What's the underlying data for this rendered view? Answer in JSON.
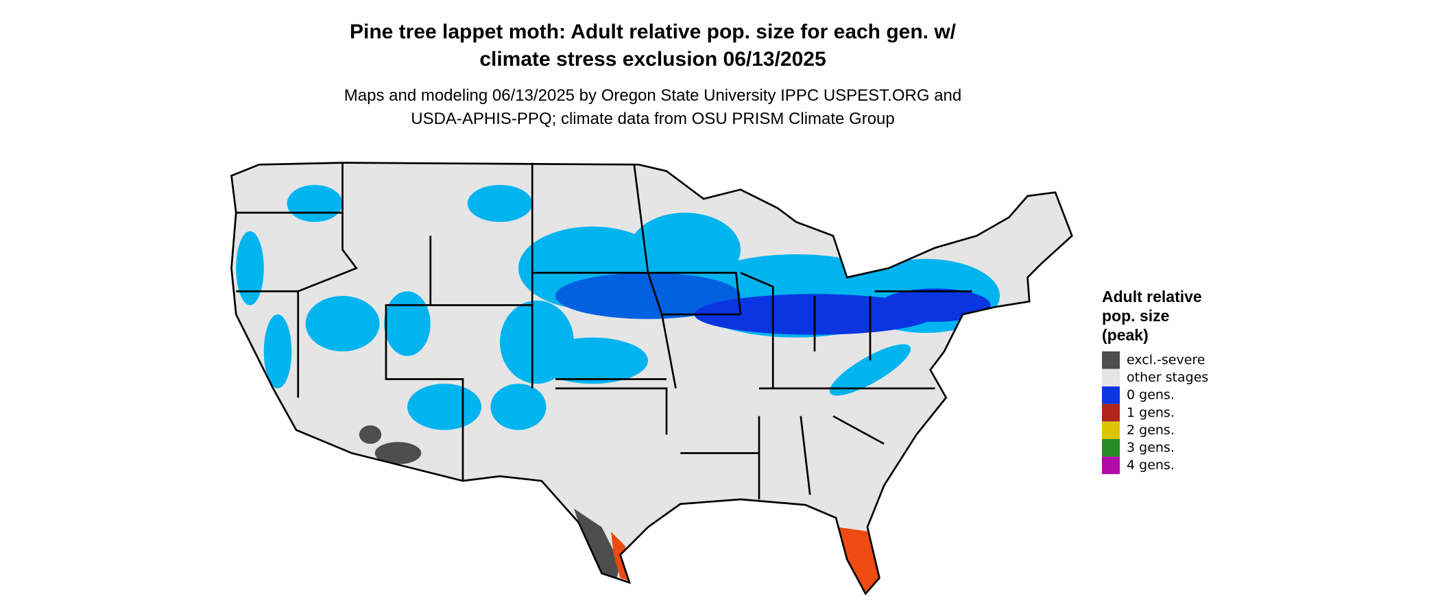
{
  "title": [
    "Pine tree lappet moth: Adult relative pop. size for each gen. w/",
    "climate stress exclusion 06/13/2025"
  ],
  "subtitle": [
    "Maps and modeling 06/13/2025 by Oregon State University IPPC USPEST.ORG and",
    "USDA-APHIS-PPQ; climate data from OSU PRISM Climate Group"
  ],
  "legend": {
    "title": [
      "Adult relative",
      "pop. size",
      "(peak)"
    ],
    "items": [
      {
        "label": "excl.-severe",
        "color": "#4d4d4d"
      },
      {
        "label": "other stages",
        "color": "#e5e5e5"
      },
      {
        "label": "0 gens.",
        "color": "#0a35e0"
      },
      {
        "label": "1 gens.",
        "color": "#b2261a"
      },
      {
        "label": "2 gens.",
        "color": "#dcc400"
      },
      {
        "label": "3 gens.",
        "color": "#248a24"
      },
      {
        "label": "4 gens.",
        "color": "#b00aa8"
      }
    ]
  }
}
